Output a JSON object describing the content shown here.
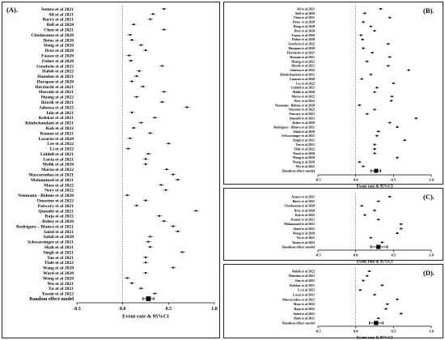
{
  "chart_data": [
    {
      "type": "forest",
      "panel_label": "(A).",
      "xlabel": "Event rate & 95%CI",
      "xlim": [
        -0.5,
        1.0
      ],
      "xticks": [
        "-0.5",
        "0.0",
        "0.5",
        "1.0"
      ],
      "studies": [
        {
          "name": "Aemro et al 2021",
          "est": 0.45
        },
        {
          "name": "Ali et al 2021",
          "est": 0.33
        },
        {
          "name": "Barry et al 2021",
          "est": 0.3
        },
        {
          "name": "Bell et al 2020",
          "est": 0.12
        },
        {
          "name": "Chen et al 2021",
          "est": 0.45
        },
        {
          "name": "Chudasama et al 2020",
          "est": 0.08
        },
        {
          "name": "Detoc et al 2020",
          "est": 0.1
        },
        {
          "name": "Dong et al 2020",
          "est": 0.2
        },
        {
          "name": "Dror et al 2020",
          "est": 0.25
        },
        {
          "name": "Faasse et al 2020",
          "est": 0.07
        },
        {
          "name": "Fisher et al 2020",
          "est": 0.09
        },
        {
          "name": "Goodwin et al 2022",
          "est": 0.43
        },
        {
          "name": "Habib et al 2022",
          "est": 0.18
        },
        {
          "name": "Hamdan et al 2021",
          "est": 0.15
        },
        {
          "name": "Harapan et al 2020",
          "est": 0.1
        },
        {
          "name": "Herzlacht et al 2021",
          "est": 0.22
        },
        {
          "name": "Hossain et al 2021",
          "est": 0.45
        },
        {
          "name": "Huang et al 2022",
          "est": 0.15
        },
        {
          "name": "Ikizsik et al 2021",
          "est": 0.43
        },
        {
          "name": "Jaheesa et al 2022",
          "est": 0.7
        },
        {
          "name": "Jain et al 2021",
          "est": 0.1
        },
        {
          "name": "Kelekar et al 2021",
          "est": 0.35
        },
        {
          "name": "Khubchandani et al 2021",
          "est": 0.2
        },
        {
          "name": "Koh et al 2022",
          "est": 0.12
        },
        {
          "name": "Kumar et al 2021",
          "est": 0.3
        },
        {
          "name": "Lazarus et al 2020",
          "est": 0.08
        },
        {
          "name": "Lee et al 2022",
          "est": 0.5
        },
        {
          "name": "Li et al 2022",
          "est": 0.06
        },
        {
          "name": "Liddell et al 2021",
          "est": 0.28
        },
        {
          "name": "Lucia et al 2021",
          "est": 0.25
        },
        {
          "name": "Malik et al 2020",
          "est": 0.25
        },
        {
          "name": "Marzo et al 2022",
          "est": 0.48
        },
        {
          "name": "Mascarenhas et al 2021",
          "est": 0.55
        },
        {
          "name": "Mohammed et al 2021",
          "est": 0.6
        },
        {
          "name": "Mose et al 2022",
          "est": 0.42
        },
        {
          "name": "Nery et al 2022",
          "est": 0.47
        },
        {
          "name": "Neumann - Böhme et al 2020",
          "est": 0.05
        },
        {
          "name": "Ousseine et al 2022",
          "est": 0.25
        },
        {
          "name": "Patwary et al 2021",
          "est": 0.15
        },
        {
          "name": "Qunaibi et al 2021",
          "est": 0.8
        },
        {
          "name": "Raja et al 2022",
          "est": 0.4
        },
        {
          "name": "Reiter et al 2020",
          "est": 0.45
        },
        {
          "name": "Rodríguez – Blanco et al 2021",
          "est": 0.55
        },
        {
          "name": "Saied et al 2021",
          "est": 0.6
        },
        {
          "name": "Salali et al 2020",
          "est": 0.3
        },
        {
          "name": "Schwarzinger et al 2021",
          "est": 0.28
        },
        {
          "name": "Shah et al 2021",
          "est": 0.3
        },
        {
          "name": "Singh et al 2021",
          "est": 0.65
        },
        {
          "name": "Tao et al 2021",
          "est": 0.25
        },
        {
          "name": "Tlale et al 2022",
          "est": 0.25
        },
        {
          "name": "Wang et al 2020",
          "est": 0.55
        },
        {
          "name": "Ward et al 2020",
          "est": 0.25
        },
        {
          "name": "Wong et al 2020",
          "est": 0.05
        },
        {
          "name": "Wu et al 2021",
          "est": 0.1
        },
        {
          "name": "Xu et al 2021",
          "est": 0.2
        },
        {
          "name": "Yassin et al 2022",
          "est": 0.35
        }
      ],
      "summary": {
        "name": "Random effect model",
        "est": 0.28,
        "ci": [
          0.22,
          0.34
        ]
      }
    },
    {
      "type": "forest",
      "panel_label": "(B).",
      "xlabel": "Event rate & 95%CI",
      "xlim": [
        -0.5,
        1.0
      ],
      "xticks": [
        "-0.5",
        "0.0",
        "0.5",
        "1.0"
      ],
      "studies": [
        {
          "name": "Ali et al 2021",
          "est": 0.33
        },
        {
          "name": "Bell et al 2020",
          "est": 0.12
        },
        {
          "name": "Chen et al 2021",
          "est": 0.45
        },
        {
          "name": "Detoc et al 2020",
          "est": 0.1
        },
        {
          "name": "Dong et al 2020",
          "est": 0.2
        },
        {
          "name": "Dror et al 2020",
          "est": 0.25
        },
        {
          "name": "Faasse et al 2020",
          "est": 0.07
        },
        {
          "name": "Fisher et al 2020",
          "est": 0.09
        },
        {
          "name": "Goodwin et al 2022",
          "est": 0.43
        },
        {
          "name": "Harapan et al 2020",
          "est": 0.1
        },
        {
          "name": "Herzlacht et al 2021",
          "est": 0.22
        },
        {
          "name": "Hossain et al 2021",
          "est": 0.45
        },
        {
          "name": "Huang et al 2022",
          "est": 0.15
        },
        {
          "name": "Ikizsik et al 2021",
          "est": 0.43
        },
        {
          "name": "Jaheesa et al 2022",
          "est": 0.7
        },
        {
          "name": "Khubchandani et al 2021",
          "est": 0.2
        },
        {
          "name": "Lazarus et al 2020",
          "est": 0.08
        },
        {
          "name": "Lee et al 2022",
          "est": 0.5
        },
        {
          "name": "Liddell et al 2021",
          "est": 0.28
        },
        {
          "name": "Malik et al 2020",
          "est": 0.25
        },
        {
          "name": "Marzo et al 2022",
          "est": 0.48
        },
        {
          "name": "Nery et al 2022",
          "est": 0.47
        },
        {
          "name": "Neumann - Böhme et al 2020",
          "est": 0.05
        },
        {
          "name": "Ousseine et al 2022",
          "est": 0.25
        },
        {
          "name": "Patwary et al 2021",
          "est": 0.15
        },
        {
          "name": "Qunaibi et al 2021",
          "est": 0.8
        },
        {
          "name": "Reiter et al 2020",
          "est": 0.45
        },
        {
          "name": "Rodríguez – Blanco et al 2021",
          "est": 0.55
        },
        {
          "name": "Salali et al 2020",
          "est": 0.3
        },
        {
          "name": "Schwarzinger et al 2021",
          "est": 0.28
        },
        {
          "name": "Singh et al 2021",
          "est": 0.65
        },
        {
          "name": "Tao et al 2021",
          "est": 0.25
        },
        {
          "name": "Tlale et al 2022",
          "est": 0.25
        },
        {
          "name": "Ward et al 2020",
          "est": 0.25
        },
        {
          "name": "Wang et al 2020",
          "est": 0.55
        },
        {
          "name": "Wong et al 2020",
          "est": 0.05
        },
        {
          "name": "Wu et al 2021",
          "est": 0.1
        }
      ],
      "summary": {
        "name": "Random effect model",
        "est": 0.27,
        "ci": [
          0.2,
          0.33
        ]
      }
    },
    {
      "type": "forest",
      "panel_label": "(C).",
      "xlabel": "Event rate & 95%CI",
      "xlim": [
        -0.5,
        1.0
      ],
      "xticks": [
        "-0.5",
        "0.0",
        "0.5",
        "1.0"
      ],
      "studies": [
        {
          "name": "Aemro et al 2021",
          "est": 0.45
        },
        {
          "name": "Barry et al 2021",
          "est": 0.3
        },
        {
          "name": "Chudasama et al 2020",
          "est": 0.08
        },
        {
          "name": "Dror et al 2020",
          "est": 0.25
        },
        {
          "name": "Koh et al 2022",
          "est": 0.12
        },
        {
          "name": "Kumar et al 2021",
          "est": 0.3
        },
        {
          "name": "Mohammed et al 2021",
          "est": 0.6
        },
        {
          "name": "Saied et al 2021",
          "est": 0.6
        },
        {
          "name": "Wang et al 2020",
          "est": 0.55
        },
        {
          "name": "Xu et al 2021",
          "est": 0.2
        },
        {
          "name": "Yassin et al 2022",
          "est": 0.35
        }
      ],
      "summary": {
        "name": "Random effect model",
        "est": 0.3,
        "ci": [
          0.2,
          0.42
        ]
      }
    },
    {
      "type": "forest",
      "panel_label": "(D).",
      "xlabel": "Event rate & 95%CI",
      "xlim": [
        -0.5,
        1.0
      ],
      "xticks": [
        "-0.5",
        "0.0",
        "0.5",
        "1.0"
      ],
      "studies": [
        {
          "name": "Habib et al 2022",
          "est": 0.18
        },
        {
          "name": "Hamdan et al 2021",
          "est": 0.15
        },
        {
          "name": "Jain et al 2021",
          "est": 0.1
        },
        {
          "name": "Kelekar et al 2021",
          "est": 0.35
        },
        {
          "name": "Li et al 2022",
          "est": 0.06
        },
        {
          "name": "Lucia et al 2021",
          "est": 0.25
        },
        {
          "name": "Mascarenhas et al 2021",
          "est": 0.55
        },
        {
          "name": "Mose et al 2022",
          "est": 0.42
        },
        {
          "name": "Raja et al 2022",
          "est": 0.4
        },
        {
          "name": "Saied et al 2021",
          "est": 0.6
        },
        {
          "name": "Shah et al 2021",
          "est": 0.3
        }
      ],
      "summary": {
        "name": "Random effect model",
        "est": 0.27,
        "ci": [
          0.18,
          0.36
        ]
      }
    }
  ]
}
